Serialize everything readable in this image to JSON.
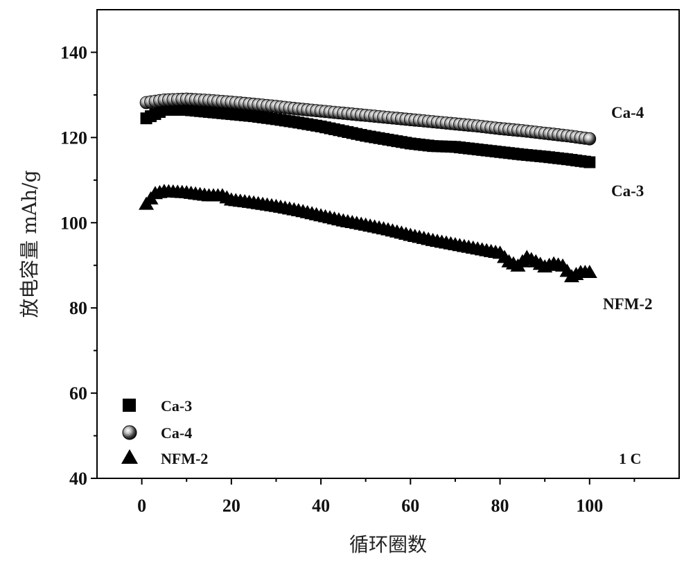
{
  "chart_data": {
    "type": "scatter",
    "title": "",
    "xlabel": "循环圈数",
    "ylabel": "放电容量 mAh/g",
    "xlim": [
      -10,
      120
    ],
    "ylim": [
      40,
      150
    ],
    "xticks": [
      0,
      20,
      40,
      60,
      80,
      100
    ],
    "yticks": [
      40,
      60,
      80,
      100,
      120,
      140
    ],
    "xminor": [
      10,
      30,
      50,
      70,
      90,
      110
    ],
    "yminor": [
      50,
      70,
      90,
      110,
      130
    ],
    "grid": false,
    "legend_position": "bottom-left",
    "note": "1 C",
    "series": [
      {
        "name": "Ca-3",
        "marker": "square",
        "end_label": "Ca-3",
        "x": [
          1,
          5,
          10,
          15,
          20,
          25,
          30,
          35,
          40,
          45,
          50,
          55,
          60,
          65,
          70,
          75,
          80,
          85,
          90,
          95,
          100
        ],
        "y": [
          124.5,
          126.5,
          126.5,
          126.0,
          125.5,
          125.0,
          124.3,
          123.5,
          122.6,
          121.5,
          120.4,
          119.5,
          118.6,
          118.0,
          117.8,
          117.2,
          116.6,
          116.0,
          115.5,
          114.9,
          114.2
        ]
      },
      {
        "name": "Ca-4",
        "marker": "circle",
        "end_label": "Ca-4",
        "x": [
          1,
          5,
          10,
          15,
          20,
          25,
          30,
          35,
          40,
          45,
          50,
          55,
          60,
          65,
          70,
          75,
          80,
          85,
          90,
          95,
          100
        ],
        "y": [
          128.2,
          128.8,
          129.0,
          128.7,
          128.3,
          127.8,
          127.3,
          126.7,
          126.2,
          125.7,
          125.2,
          124.7,
          124.2,
          123.7,
          123.2,
          122.7,
          122.1,
          121.6,
          121.0,
          120.4,
          119.7
        ]
      },
      {
        "name": "NFM-2",
        "marker": "triangle",
        "end_label": "NFM-2",
        "x": [
          1,
          3,
          5,
          10,
          15,
          18,
          20,
          25,
          30,
          35,
          40,
          45,
          50,
          55,
          60,
          65,
          70,
          75,
          80,
          82,
          84,
          86,
          88,
          90,
          92,
          94,
          96,
          98,
          100
        ],
        "y": [
          104.5,
          107.0,
          107.5,
          107.2,
          106.5,
          106.5,
          105.5,
          104.8,
          104.0,
          103.0,
          101.8,
          100.6,
          99.6,
          98.5,
          97.2,
          96.0,
          95.0,
          94.0,
          93.0,
          91.0,
          90.0,
          92.0,
          91.0,
          89.8,
          90.5,
          90.0,
          87.5,
          88.5,
          88.5
        ]
      }
    ]
  }
}
